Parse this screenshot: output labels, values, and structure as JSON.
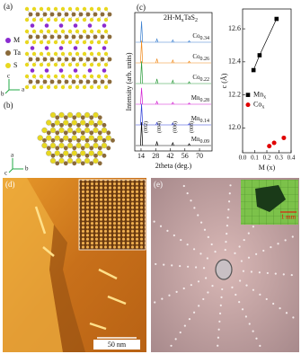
{
  "panels": {
    "a": {
      "label": "(a)",
      "legend": [
        "M",
        "Ta",
        "S"
      ],
      "axes": [
        "a",
        "b",
        "c"
      ]
    },
    "b": {
      "label": "(b)",
      "axes": [
        "b",
        "c",
        "a"
      ]
    },
    "d": {
      "label": "(d)",
      "scale_bar": "50 nm"
    },
    "e": {
      "label": "(e)",
      "scale_bar": "1 mm"
    }
  },
  "chart_data": [
    {
      "type": "stacked-line",
      "label": "(c)",
      "title_parts": [
        "2H-M",
        "x",
        "TaS",
        "2"
      ],
      "xlabel": "2theta (deg.)",
      "ylabel": "Intensity (arb. units)",
      "xlim": [
        8,
        82
      ],
      "xticks": [
        14,
        28,
        42,
        56,
        70
      ],
      "x": [
        14.5,
        29.2,
        44.4,
        60.1
      ],
      "peak_labels": [
        "(002)",
        "(004)",
        "(006)",
        "(008)"
      ],
      "series": [
        {
          "name": "Co",
          "name_sub": "0.34",
          "color": "#3a7fd0",
          "values": [
            0.9,
            0.14,
            0.1,
            0.06
          ]
        },
        {
          "name": "Co",
          "name_sub": "0.26",
          "color": "#f08a1c",
          "values": [
            0.95,
            0.18,
            0.12,
            0.07
          ]
        },
        {
          "name": "Co",
          "name_sub": "0.22",
          "color": "#2a9a3a",
          "values": [
            0.95,
            0.2,
            0.14,
            0.08
          ]
        },
        {
          "name": "Mn",
          "name_sub": "0.28",
          "color": "#d21fd2",
          "values": [
            0.7,
            0.12,
            0.08,
            0.05
          ]
        },
        {
          "name": "Mn",
          "name_sub": "0.14",
          "color": "#2f3fd8",
          "values": [
            0.9,
            0.1,
            0.08,
            0.05
          ]
        },
        {
          "name": "Mn",
          "name_sub": "0.09",
          "color": "#000000",
          "values": [
            1.0,
            0.16,
            0.12,
            0.08
          ]
        }
      ]
    },
    {
      "type": "scatter",
      "xlabel": "M (x)",
      "ylabel": "c (Å)",
      "xlim": [
        0,
        0.4
      ],
      "ylim": [
        11.85,
        12.72
      ],
      "xticks": [
        {
          "value": 0,
          "label": "0.0"
        },
        0.1,
        0.2,
        0.3,
        0.4
      ],
      "yticks": [
        {
          "value": 12,
          "label": "12.0"
        },
        12.2,
        12.4,
        12.6
      ],
      "series": [
        {
          "name": "Mn",
          "name_sub": "x",
          "color": "#000000",
          "marker": "square",
          "line": true,
          "x": [
            0.09,
            0.14,
            0.28
          ],
          "values": [
            12.35,
            12.44,
            12.66
          ]
        },
        {
          "name": "Co",
          "name_sub": "x",
          "color": "#e00000",
          "marker": "circle",
          "line": false,
          "x": [
            0.22,
            0.26,
            0.34
          ],
          "values": [
            11.89,
            11.91,
            11.94
          ]
        }
      ]
    }
  ]
}
